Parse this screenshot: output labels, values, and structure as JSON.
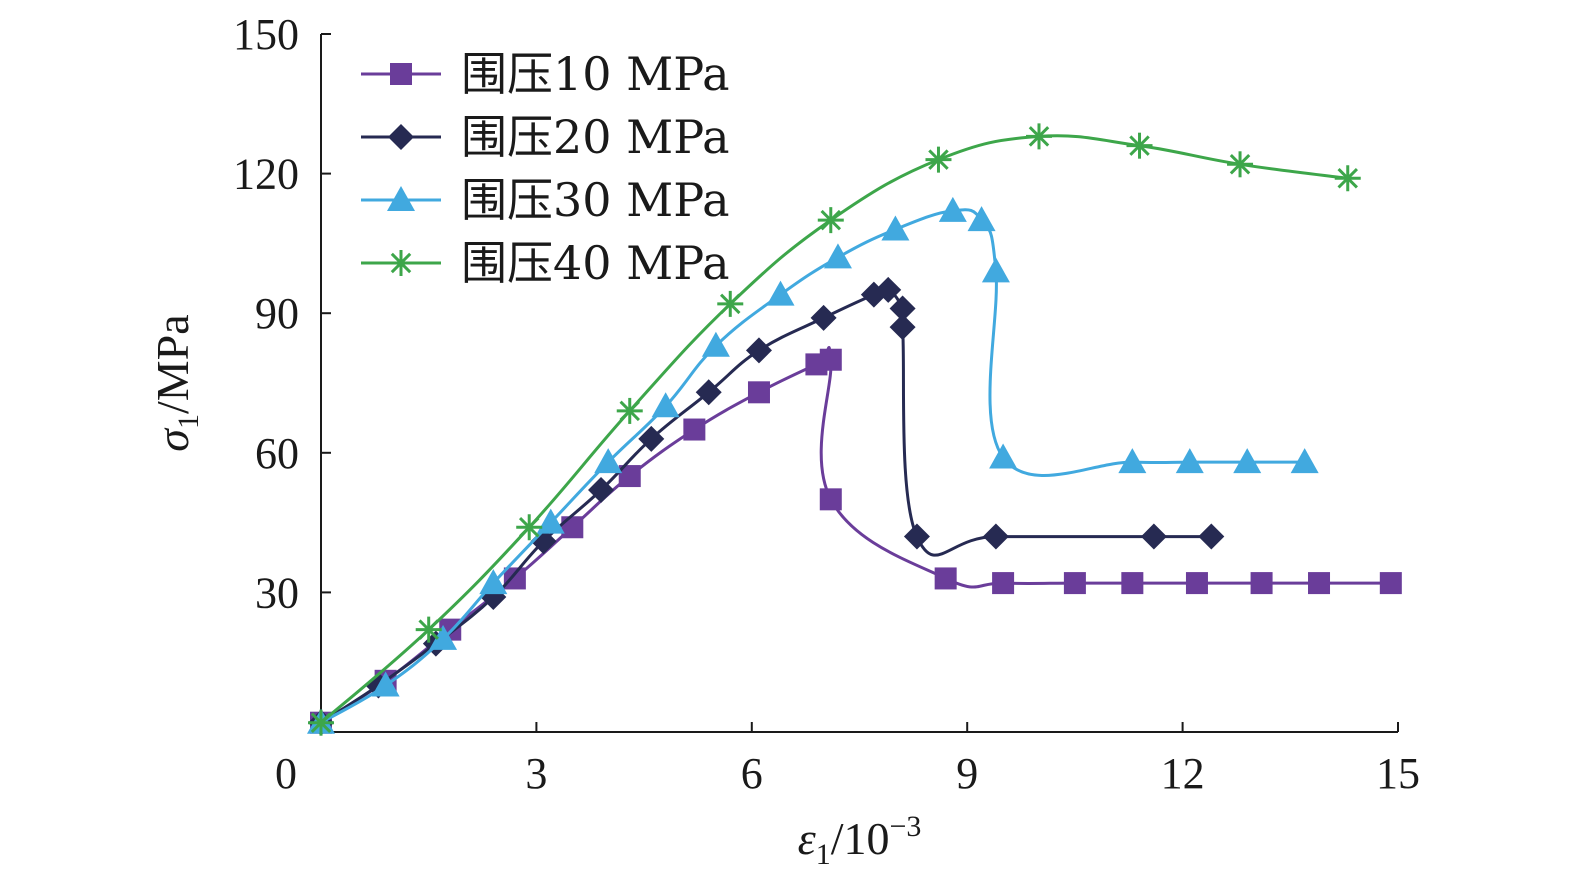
{
  "chart_data": {
    "type": "line",
    "xlabel": {
      "base": "ε",
      "sub": "1",
      "text": "/10",
      "sup": "−3"
    },
    "ylabel": {
      "base": "σ",
      "sub": "1",
      "text": "/MPa"
    },
    "xlim": [
      0,
      15
    ],
    "ylim": [
      0,
      150
    ],
    "xticks": [
      0,
      3,
      6,
      9,
      12,
      15
    ],
    "yticks": [
      30,
      60,
      90,
      120,
      150
    ],
    "x_origin_label": "0",
    "grid": false,
    "legend_position": "top-left",
    "series": [
      {
        "name": "围压10 MPa",
        "color": "#6a3d9a",
        "marker": "square",
        "x": [
          0.0,
          0.9,
          1.8,
          2.7,
          3.5,
          4.3,
          5.2,
          6.1,
          6.9,
          7.1,
          7.1,
          8.7,
          9.5,
          10.5,
          11.3,
          12.2,
          13.1,
          13.9,
          14.9
        ],
        "y": [
          2,
          11,
          22,
          33,
          44,
          55,
          65,
          73,
          79,
          80,
          50,
          33,
          32,
          32,
          32,
          32,
          32,
          32,
          32
        ]
      },
      {
        "name": "围压20 MPa",
        "color": "#262a52",
        "marker": "diamond",
        "x": [
          0.0,
          0.8,
          1.6,
          2.4,
          3.1,
          3.9,
          4.6,
          5.4,
          6.1,
          7.0,
          7.7,
          7.9,
          8.1,
          8.1,
          8.3,
          9.4,
          11.6,
          12.4
        ],
        "y": [
          2,
          10,
          19,
          29,
          41,
          52,
          63,
          73,
          82,
          89,
          94,
          95,
          91,
          87,
          42,
          42,
          42,
          42
        ]
      },
      {
        "name": "围压30 MPa",
        "color": "#41a9df",
        "marker": "triangle",
        "x": [
          0.0,
          0.9,
          1.7,
          2.4,
          3.2,
          4.0,
          4.8,
          5.5,
          6.4,
          7.2,
          8.0,
          8.8,
          9.2,
          9.4,
          9.5,
          11.3,
          12.1,
          12.9,
          13.7
        ],
        "y": [
          2,
          10,
          20,
          32,
          45,
          58,
          70,
          83,
          94,
          102,
          108,
          112,
          110,
          99,
          59,
          58,
          58,
          58,
          58
        ]
      },
      {
        "name": "围压40 MPa",
        "color": "#3da64a",
        "marker": "asterisk",
        "x": [
          0.0,
          1.5,
          2.9,
          4.3,
          5.7,
          7.1,
          8.6,
          10.0,
          11.4,
          12.8,
          14.3
        ],
        "y": [
          2,
          22,
          44,
          69,
          92,
          110,
          123,
          128,
          126,
          122,
          119
        ]
      }
    ]
  }
}
